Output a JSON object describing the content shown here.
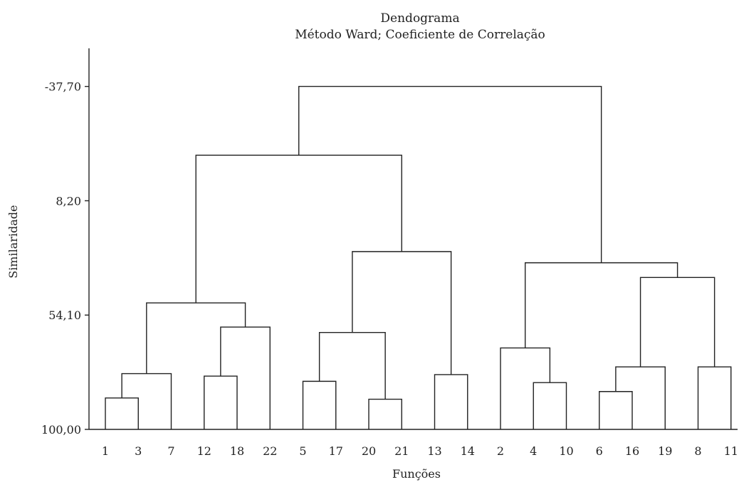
{
  "chart_data": {
    "type": "dendrogram",
    "title": "Dendograma",
    "subtitle": "Método Ward; Coeficiente de Correlação",
    "xlabel": "Funções",
    "ylabel": "Similaridade",
    "yticks": [
      {
        "value": -37.7,
        "label": "-37,70"
      },
      {
        "value": 8.2,
        "label": "8,20"
      },
      {
        "value": 54.1,
        "label": "54,10"
      },
      {
        "value": 100.0,
        "label": "100,00"
      }
    ],
    "ylim": [
      -53.0,
      100.0
    ],
    "leaves": [
      "1",
      "3",
      "7",
      "12",
      "18",
      "22",
      "5",
      "17",
      "20",
      "21",
      "13",
      "14",
      "2",
      "4",
      "10",
      "6",
      "16",
      "19",
      "8",
      "11"
    ],
    "merges": [
      {
        "id": "m1",
        "children": [
          "1",
          "3"
        ],
        "similarity": 87.4
      },
      {
        "id": "m2",
        "children": [
          "m1",
          "7"
        ],
        "similarity": 77.6
      },
      {
        "id": "m3",
        "children": [
          "12",
          "18"
        ],
        "similarity": 78.6
      },
      {
        "id": "m4",
        "children": [
          "m3",
          "22"
        ],
        "similarity": 58.9
      },
      {
        "id": "m5",
        "children": [
          "m2",
          "m4"
        ],
        "similarity": 49.2
      },
      {
        "id": "m6",
        "children": [
          "5",
          "17"
        ],
        "similarity": 80.7
      },
      {
        "id": "m7",
        "children": [
          "20",
          "21"
        ],
        "similarity": 87.9
      },
      {
        "id": "m8",
        "children": [
          "m6",
          "m7"
        ],
        "similarity": 61.1
      },
      {
        "id": "m9",
        "children": [
          "13",
          "14"
        ],
        "similarity": 78.0
      },
      {
        "id": "m10",
        "children": [
          "m8",
          "m9"
        ],
        "similarity": 28.6
      },
      {
        "id": "m11",
        "children": [
          "m5",
          "m10"
        ],
        "similarity": -10.1
      },
      {
        "id": "m12",
        "children": [
          "4",
          "10"
        ],
        "similarity": 81.2
      },
      {
        "id": "m13",
        "children": [
          "2",
          "m12"
        ],
        "similarity": 67.3
      },
      {
        "id": "m14",
        "children": [
          "6",
          "16"
        ],
        "similarity": 84.8
      },
      {
        "id": "m15",
        "children": [
          "m14",
          "19"
        ],
        "similarity": 74.9
      },
      {
        "id": "m16",
        "children": [
          "8",
          "11"
        ],
        "similarity": 74.9
      },
      {
        "id": "m17",
        "children": [
          "m15",
          "m16"
        ],
        "similarity": 39.0
      },
      {
        "id": "m18",
        "children": [
          "m13",
          "m17"
        ],
        "similarity": 33.1
      },
      {
        "id": "m19",
        "children": [
          "m11",
          "m18"
        ],
        "similarity": -37.7
      }
    ],
    "grid": false
  }
}
